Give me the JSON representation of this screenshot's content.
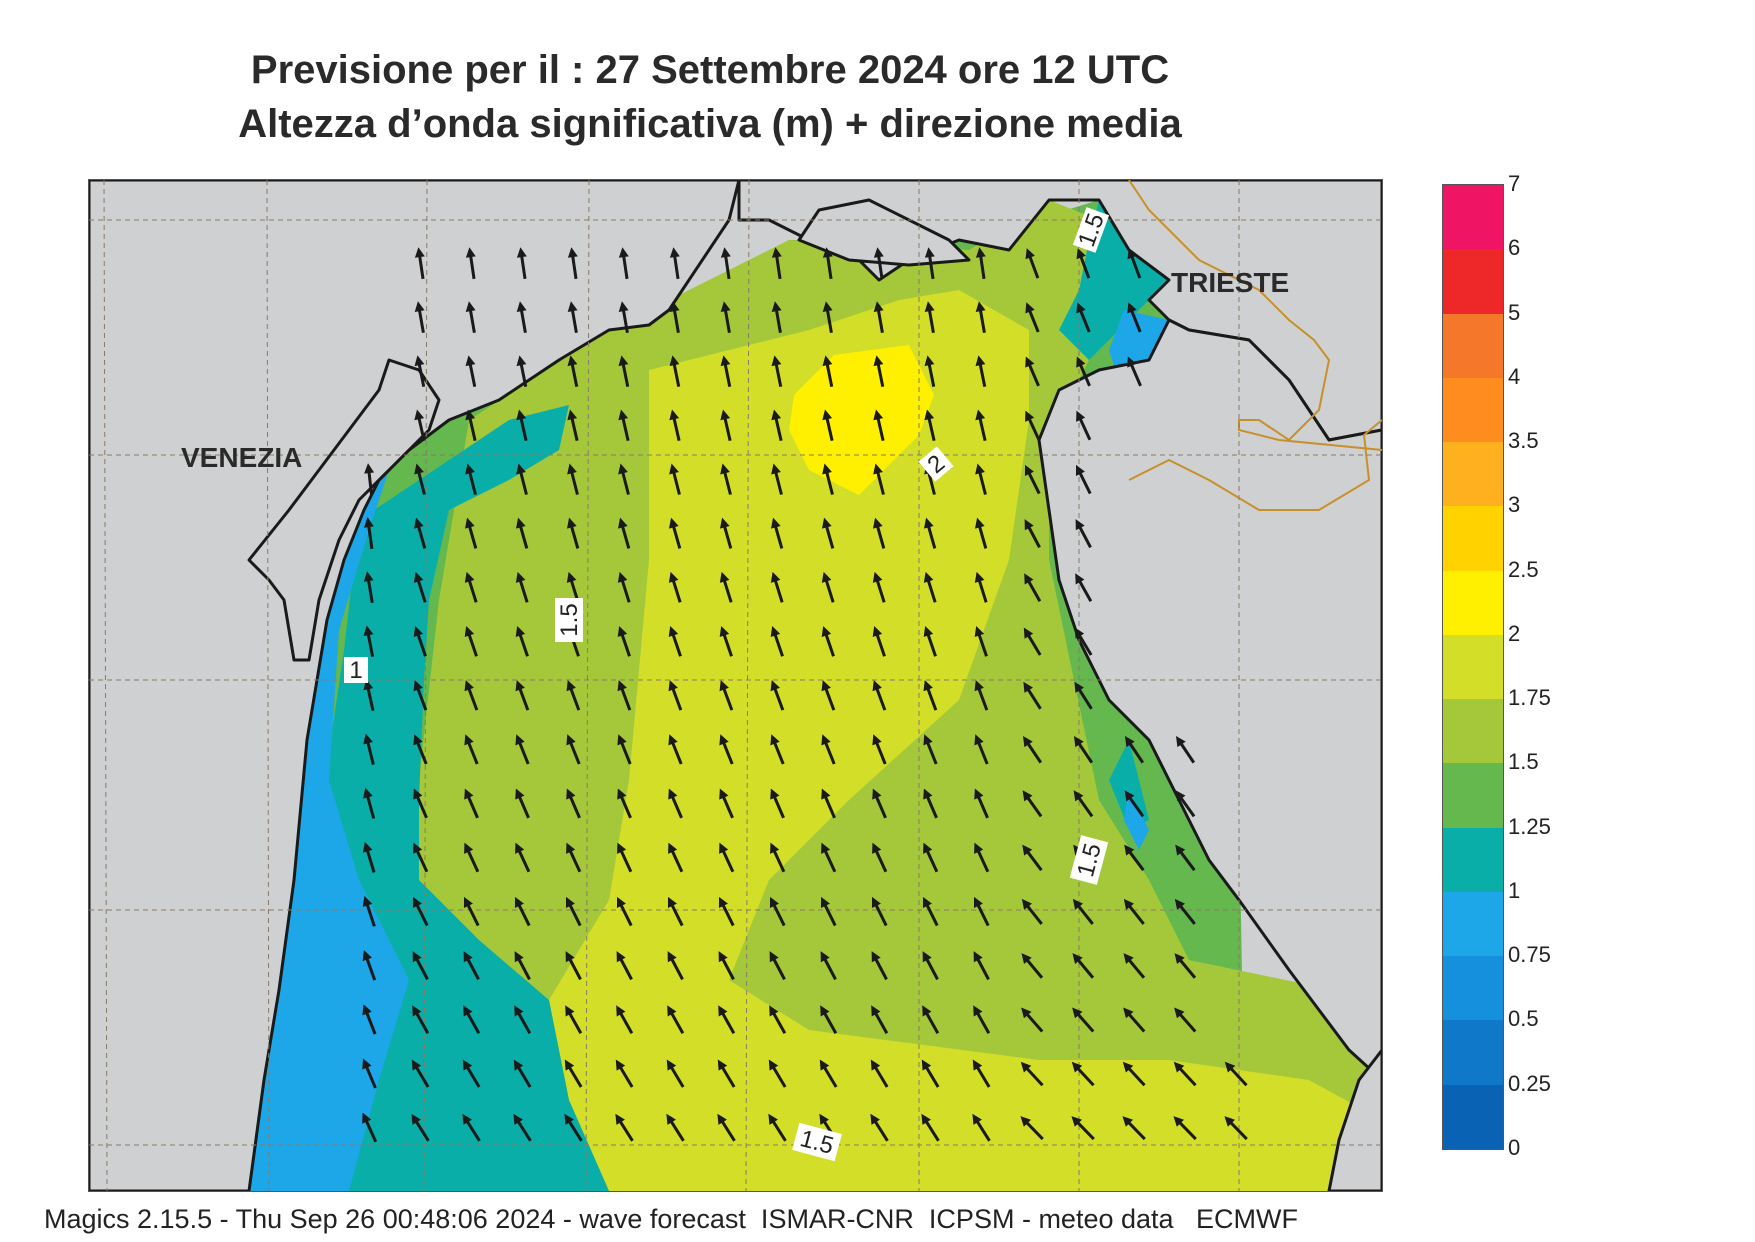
{
  "title": {
    "line1": "Previsione per il  :  27 Settembre 2024   ore 12 UTC",
    "line2": "Altezza d’onda significativa (m) + direzione media"
  },
  "footer": "Magics 2.15.5 - Thu Sep 26 00:48:06 2024 - wave forecast  ISMAR-CNR  ICPSM - meteo data   ECMWF",
  "cities": [
    {
      "name": "VENEZIA"
    },
    {
      "name": "TRIESTE"
    }
  ],
  "contour_labels": [
    "1.5",
    "1.5",
    "1.5",
    "1.5",
    "2",
    "1"
  ],
  "legend": {
    "levels": [
      "0",
      "0.25",
      "0.5",
      "0.75",
      "1",
      "1.25",
      "1.5",
      "1.75",
      "2",
      "2.5",
      "3",
      "3.5",
      "4",
      "5",
      "6",
      "7"
    ],
    "colors": [
      "#0a62b4",
      "#0f78c8",
      "#1490dc",
      "#1da6e8",
      "#0aaea8",
      "#64b84e",
      "#a4c83a",
      "#d2de28",
      "#fff000",
      "#ffd200",
      "#ffb01e",
      "#ff8c1e",
      "#f5782a",
      "#ee2828",
      "#f01464"
    ]
  },
  "map": {
    "land_color": "#cfd0d2",
    "coast_color": "#1a1a1a",
    "border_color": "#c8902a",
    "arrow_color": "#1a1a1a",
    "wave_direction": "northward (slightly north-west toward the south-east)"
  }
}
